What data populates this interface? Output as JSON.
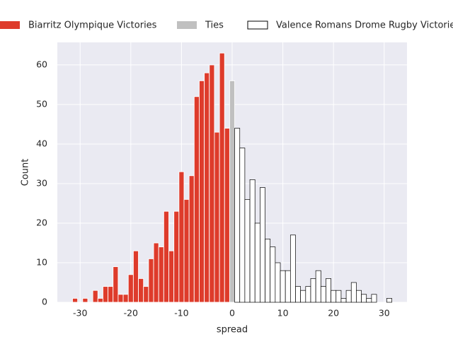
{
  "chart_data": {
    "type": "histogram",
    "x_label": "spread",
    "y_label": "Count",
    "xlim": [
      -34.5,
      34.5
    ],
    "ylim": [
      0,
      65.7
    ],
    "xticks": [
      -30,
      -20,
      -10,
      0,
      10,
      20,
      30
    ],
    "yticks": [
      0,
      10,
      20,
      30,
      40,
      50,
      60
    ],
    "grid": true,
    "legend": "top",
    "series": [
      {
        "name": "Biarritz Olympique Victories",
        "color": "#de3b2b",
        "bins": [
          -31.5,
          -30.5,
          -29.5,
          -28.5,
          -27.5,
          -26.5,
          -25.5,
          -24.5,
          -23.5,
          -22.5,
          -21.5,
          -20.5,
          -19.5,
          -18.5,
          -17.5,
          -16.5,
          -15.5,
          -14.5,
          -13.5,
          -12.5,
          -11.5,
          -10.5,
          -9.5,
          -8.5,
          -7.5,
          -6.5,
          -5.5,
          -4.5,
          -3.5,
          -2.5,
          -1.5,
          -0.5
        ],
        "values": [
          1,
          0,
          1,
          0,
          3,
          1,
          4,
          4,
          9,
          2,
          2,
          7,
          13,
          6,
          4,
          11,
          15,
          14,
          23,
          13,
          23,
          33,
          26,
          32,
          52,
          56,
          58,
          60,
          43,
          63,
          44
        ]
      },
      {
        "name": "Ties",
        "color": "#c0c0c0",
        "bins": [
          -0.5,
          0.5
        ],
        "values": [
          56
        ]
      },
      {
        "name": "Valence Romans Drome Rugby Victories",
        "color": "#ffffff",
        "edgecolor": "#000000",
        "bins": [
          0.5,
          1.5,
          2.5,
          3.5,
          4.5,
          5.5,
          6.5,
          7.5,
          8.5,
          9.5,
          10.5,
          11.5,
          12.5,
          13.5,
          14.5,
          15.5,
          16.5,
          17.5,
          18.5,
          19.5,
          20.5,
          21.5,
          22.5,
          23.5,
          24.5,
          25.5,
          26.5,
          27.5,
          28.5,
          29.5,
          30.5,
          31.5
        ],
        "values": [
          44,
          39,
          26,
          31,
          20,
          29,
          16,
          14,
          10,
          8,
          8,
          17,
          4,
          3,
          4,
          6,
          8,
          4,
          6,
          3,
          3,
          1,
          3,
          5,
          3,
          2,
          1,
          2,
          0,
          0,
          1
        ]
      }
    ]
  }
}
